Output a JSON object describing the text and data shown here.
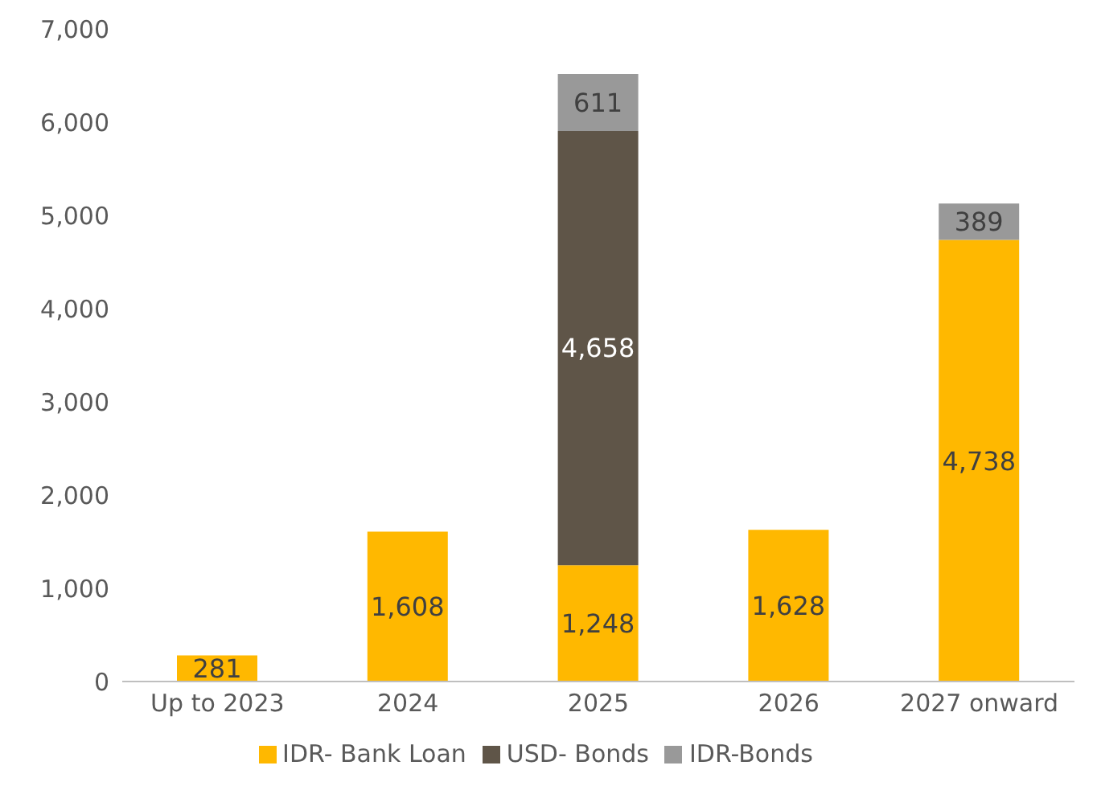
{
  "chart_data": {
    "type": "bar",
    "stacked": true,
    "categories": [
      "Up to 2023",
      "2024",
      "2025",
      "2026",
      "2027 onward"
    ],
    "series": [
      {
        "name": "IDR- Bank Loan",
        "color": "#ffb800",
        "values": [
          281,
          1608,
          1248,
          1628,
          4738
        ],
        "value_labels": [
          "281",
          "1,608",
          "1,248",
          "1,628",
          "4,738"
        ]
      },
      {
        "name": "USD- Bonds",
        "color": "#5f5548",
        "values": [
          null,
          null,
          4658,
          null,
          null
        ],
        "value_labels": [
          null,
          null,
          "4,658",
          null,
          null
        ]
      },
      {
        "name": "IDR-Bonds",
        "color": "#999999",
        "values": [
          null,
          null,
          611,
          null,
          389
        ],
        "value_labels": [
          null,
          null,
          "611",
          null,
          "389"
        ]
      }
    ],
    "ylim": [
      0,
      7000
    ],
    "yticks": [
      0,
      {
        "value": 1000,
        "label": "1,000"
      },
      {
        "value": 2000,
        "label": "2,000"
      },
      {
        "value": 3000,
        "label": "3,000"
      },
      {
        "value": 4000,
        "label": "4,000"
      },
      {
        "value": 5000,
        "label": "5,000"
      },
      {
        "value": 6000,
        "label": "6,000"
      },
      {
        "value": 7000,
        "label": "7,000"
      }
    ],
    "grid": false,
    "legend": "bottom"
  }
}
